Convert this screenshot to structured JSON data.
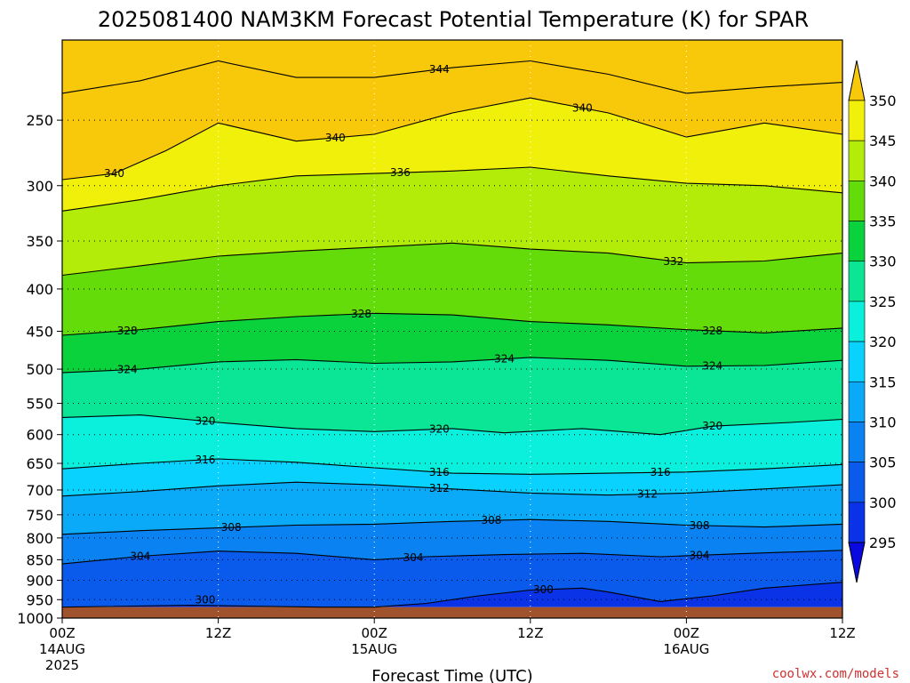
{
  "chart_data": {
    "type": "heatmap",
    "title": "2025081400 NAM3KM Forecast Potential Temperature (K) for SPAR",
    "xlabel": "Forecast Time (UTC)",
    "ylabel": "",
    "y_scale": "log",
    "y_reversed": true,
    "ylim": [
      1000,
      200
    ],
    "xlim": [
      0,
      60
    ],
    "y_ticks": [
      250,
      300,
      350,
      400,
      450,
      500,
      550,
      600,
      650,
      700,
      750,
      800,
      850,
      900,
      950,
      1000
    ],
    "x_ticks": [
      {
        "hour": 0,
        "label": "00Z",
        "sub1": "14AUG",
        "sub2": "2025"
      },
      {
        "hour": 12,
        "label": "12Z",
        "sub1": "",
        "sub2": ""
      },
      {
        "hour": 24,
        "label": "00Z",
        "sub1": "15AUG",
        "sub2": ""
      },
      {
        "hour": 36,
        "label": "12Z",
        "sub1": "",
        "sub2": ""
      },
      {
        "hour": 48,
        "label": "00Z",
        "sub1": "16AUG",
        "sub2": ""
      },
      {
        "hour": 60,
        "label": "12Z",
        "sub1": "",
        "sub2": ""
      }
    ],
    "grid": true,
    "colorbar": {
      "position": "right",
      "levels": [
        295,
        300,
        305,
        310,
        315,
        320,
        325,
        330,
        335,
        340,
        345,
        350
      ],
      "colors": [
        "#0a0ae0",
        "#0a32e6",
        "#0a5aec",
        "#0a82f2",
        "#0aaaf8",
        "#0ad2fe",
        "#0af0dc",
        "#0ae696",
        "#0ad23c",
        "#64dc0a",
        "#b4ec0a",
        "#f0f00a",
        "#f8c80a"
      ]
    },
    "ground_color": "#a0522d",
    "series": [
      {
        "level": 300,
        "p": [
          [
            0,
            970
          ],
          [
            10,
            965
          ],
          [
            16,
            968
          ],
          [
            20,
            972
          ],
          [
            24,
            975
          ],
          [
            28,
            960
          ],
          [
            32,
            940
          ],
          [
            36,
            925
          ],
          [
            40,
            920
          ],
          [
            42,
            930
          ],
          [
            46,
            955
          ],
          [
            50,
            940
          ],
          [
            54,
            920
          ],
          [
            60,
            905
          ]
        ],
        "labels": [
          {
            "hour": 11,
            "text": "300"
          },
          {
            "hour": 37,
            "text": "300"
          }
        ]
      },
      {
        "level": 304,
        "p": [
          [
            0,
            860
          ],
          [
            6,
            842
          ],
          [
            12,
            830
          ],
          [
            18,
            835
          ],
          [
            24,
            850
          ],
          [
            28,
            843
          ],
          [
            34,
            838
          ],
          [
            40,
            835
          ],
          [
            46,
            843
          ],
          [
            52,
            836
          ],
          [
            60,
            828
          ]
        ],
        "labels": [
          {
            "hour": 6,
            "text": "304"
          },
          {
            "hour": 27,
            "text": "304"
          },
          {
            "hour": 49,
            "text": "304"
          }
        ]
      },
      {
        "level": 308,
        "p": [
          [
            0,
            792
          ],
          [
            6,
            784
          ],
          [
            12,
            778
          ],
          [
            18,
            772
          ],
          [
            24,
            770
          ],
          [
            30,
            764
          ],
          [
            36,
            760
          ],
          [
            42,
            764
          ],
          [
            48,
            772
          ],
          [
            54,
            776
          ],
          [
            60,
            770
          ]
        ],
        "labels": [
          {
            "hour": 13,
            "text": "308"
          },
          {
            "hour": 33,
            "text": "308"
          },
          {
            "hour": 49,
            "text": "308"
          }
        ]
      },
      {
        "level": 312,
        "p": [
          [
            0,
            712
          ],
          [
            6,
            703
          ],
          [
            12,
            692
          ],
          [
            18,
            685
          ],
          [
            24,
            690
          ],
          [
            30,
            698
          ],
          [
            36,
            706
          ],
          [
            42,
            710
          ],
          [
            48,
            706
          ],
          [
            54,
            698
          ],
          [
            60,
            690
          ]
        ],
        "labels": [
          {
            "hour": 29,
            "text": "312"
          },
          {
            "hour": 45,
            "text": "312"
          }
        ]
      },
      {
        "level": 316,
        "p": [
          [
            0,
            660
          ],
          [
            6,
            650
          ],
          [
            12,
            642
          ],
          [
            18,
            648
          ],
          [
            24,
            658
          ],
          [
            30,
            668
          ],
          [
            36,
            670
          ],
          [
            42,
            668
          ],
          [
            48,
            666
          ],
          [
            54,
            660
          ],
          [
            60,
            652
          ]
        ],
        "labels": [
          {
            "hour": 11,
            "text": "316"
          },
          {
            "hour": 29,
            "text": "316"
          },
          {
            "hour": 46,
            "text": "316"
          }
        ]
      },
      {
        "level": 320,
        "p": [
          [
            0,
            572
          ],
          [
            6,
            568
          ],
          [
            12,
            580
          ],
          [
            18,
            590
          ],
          [
            24,
            595
          ],
          [
            30,
            590
          ],
          [
            34,
            597
          ],
          [
            40,
            590
          ],
          [
            46,
            600
          ],
          [
            50,
            586
          ],
          [
            56,
            580
          ],
          [
            60,
            575
          ]
        ],
        "labels": [
          {
            "hour": 11,
            "text": "320"
          },
          {
            "hour": 29,
            "text": "320"
          },
          {
            "hour": 50,
            "text": "320"
          }
        ]
      },
      {
        "level": 324,
        "p": [
          [
            0,
            505
          ],
          [
            6,
            500
          ],
          [
            12,
            490
          ],
          [
            18,
            487
          ],
          [
            24,
            492
          ],
          [
            30,
            490
          ],
          [
            36,
            484
          ],
          [
            42,
            488
          ],
          [
            48,
            496
          ],
          [
            54,
            495
          ],
          [
            60,
            488
          ]
        ],
        "labels": [
          {
            "hour": 5,
            "text": "324"
          },
          {
            "hour": 34,
            "text": "324"
          },
          {
            "hour": 50,
            "text": "324"
          }
        ]
      },
      {
        "level": 328,
        "p": [
          [
            0,
            455
          ],
          [
            6,
            448
          ],
          [
            12,
            438
          ],
          [
            18,
            432
          ],
          [
            24,
            428
          ],
          [
            30,
            430
          ],
          [
            36,
            438
          ],
          [
            42,
            442
          ],
          [
            48,
            448
          ],
          [
            54,
            452
          ],
          [
            60,
            446
          ]
        ],
        "labels": [
          {
            "hour": 5,
            "text": "328"
          },
          {
            "hour": 23,
            "text": "328"
          },
          {
            "hour": 50,
            "text": "328"
          }
        ]
      },
      {
        "level": 332,
        "p": [
          [
            0,
            385
          ],
          [
            6,
            375
          ],
          [
            12,
            365
          ],
          [
            18,
            360
          ],
          [
            24,
            356
          ],
          [
            30,
            352
          ],
          [
            36,
            358
          ],
          [
            42,
            362
          ],
          [
            48,
            372
          ],
          [
            54,
            370
          ],
          [
            60,
            362
          ]
        ],
        "labels": [
          {
            "hour": 47,
            "text": "332"
          }
        ]
      },
      {
        "level": 336,
        "p": [
          [
            0,
            322
          ],
          [
            6,
            312
          ],
          [
            12,
            300
          ],
          [
            18,
            292
          ],
          [
            24,
            290
          ],
          [
            30,
            288
          ],
          [
            36,
            285
          ],
          [
            42,
            292
          ],
          [
            48,
            298
          ],
          [
            54,
            300
          ],
          [
            60,
            306
          ]
        ],
        "labels": [
          {
            "hour": 26,
            "text": "336"
          }
        ]
      },
      {
        "level": 340,
        "p": [
          [
            0,
            295
          ],
          [
            4,
            290
          ],
          [
            8,
            272
          ],
          [
            12,
            252
          ],
          [
            18,
            265
          ],
          [
            24,
            260
          ],
          [
            30,
            245
          ],
          [
            36,
            235
          ],
          [
            42,
            245
          ],
          [
            48,
            262
          ],
          [
            54,
            252
          ],
          [
            60,
            260
          ]
        ],
        "labels": [
          {
            "hour": 4,
            "text": "340"
          },
          {
            "hour": 21,
            "text": "340"
          },
          {
            "hour": 40,
            "text": "340"
          }
        ]
      },
      {
        "level": 344,
        "p": [
          [
            0,
            232
          ],
          [
            6,
            224
          ],
          [
            12,
            212
          ],
          [
            18,
            222
          ],
          [
            24,
            222
          ],
          [
            30,
            216
          ],
          [
            36,
            212
          ],
          [
            42,
            220
          ],
          [
            48,
            232
          ],
          [
            54,
            228
          ],
          [
            60,
            225
          ]
        ],
        "labels": [
          {
            "hour": 29,
            "text": "344"
          }
        ]
      }
    ]
  },
  "credit": "coolwx.com/models"
}
